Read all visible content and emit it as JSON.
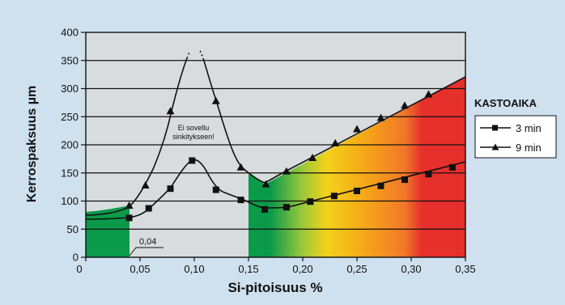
{
  "chart_data": {
    "type": "line",
    "xlabel": "Si-pitoisuus %",
    "ylabel": "Kerrospaksuus µm",
    "xlim": [
      0,
      0.35
    ],
    "ylim": [
      0,
      400
    ],
    "x_ticks": [
      "0",
      "0,05",
      "0,10",
      "0,15",
      "0,20",
      "0,25",
      "0,30",
      "0,35"
    ],
    "y_ticks": [
      "0",
      "50",
      "100",
      "150",
      "200",
      "250",
      "300",
      "350",
      "400"
    ],
    "grid": "horizontal",
    "legend": {
      "title": "KASTOAIKA",
      "placement": "right",
      "entries": [
        "3 min",
        "9 min"
      ]
    },
    "series": [
      {
        "name": "3 min",
        "marker": "square",
        "x": [
          0.04,
          0.058,
          0.078,
          0.098,
          0.12,
          0.143,
          0.165,
          0.185,
          0.207,
          0.229,
          0.25,
          0.272,
          0.294,
          0.316,
          0.338
        ],
        "y": [
          70,
          87,
          122,
          172,
          120,
          102,
          85,
          89,
          99,
          109,
          118,
          127,
          138,
          148,
          160
        ]
      },
      {
        "name": "9 min",
        "marker": "triangle",
        "x": [
          0.04,
          0.055,
          0.078,
          0.12,
          0.143,
          0.166,
          0.185,
          0.209,
          0.23,
          0.25,
          0.272,
          0.294,
          0.316
        ],
        "y": [
          92,
          128,
          260,
          278,
          160,
          130,
          153,
          177,
          203,
          228,
          248,
          270,
          290
        ]
      }
    ],
    "annotations": {
      "no_galv_line1": "Ei sovellu",
      "no_galv_line2": "sinkitykseen!",
      "marker_004": "0,04"
    },
    "colors": {
      "plot_bg": "#d9dcde",
      "page_bg": "#cfe1ef",
      "green": "#0a9a4a",
      "yellow": "#f3d21a",
      "orange": "#f5a418",
      "red": "#e5302b"
    }
  }
}
